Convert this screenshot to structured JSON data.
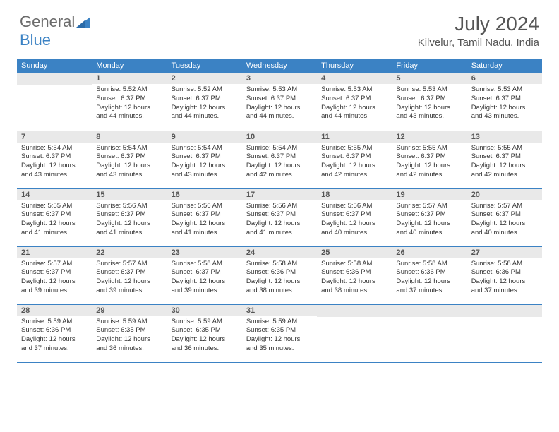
{
  "brand": {
    "part1": "General",
    "part2": "Blue"
  },
  "title": "July 2024",
  "location": "Kilvelur, Tamil Nadu, India",
  "colors": {
    "header_bg": "#3b82c4",
    "header_text": "#ffffff",
    "daynum_bg": "#e9e9e9",
    "text": "#333333",
    "row_border": "#3b82c4"
  },
  "day_headers": [
    "Sunday",
    "Monday",
    "Tuesday",
    "Wednesday",
    "Thursday",
    "Friday",
    "Saturday"
  ],
  "weeks": [
    [
      {
        "n": "",
        "sr": "",
        "ss": "",
        "dl": ""
      },
      {
        "n": "1",
        "sr": "5:52 AM",
        "ss": "6:37 PM",
        "dl": "12 hours and 44 minutes."
      },
      {
        "n": "2",
        "sr": "5:52 AM",
        "ss": "6:37 PM",
        "dl": "12 hours and 44 minutes."
      },
      {
        "n": "3",
        "sr": "5:53 AM",
        "ss": "6:37 PM",
        "dl": "12 hours and 44 minutes."
      },
      {
        "n": "4",
        "sr": "5:53 AM",
        "ss": "6:37 PM",
        "dl": "12 hours and 44 minutes."
      },
      {
        "n": "5",
        "sr": "5:53 AM",
        "ss": "6:37 PM",
        "dl": "12 hours and 43 minutes."
      },
      {
        "n": "6",
        "sr": "5:53 AM",
        "ss": "6:37 PM",
        "dl": "12 hours and 43 minutes."
      }
    ],
    [
      {
        "n": "7",
        "sr": "5:54 AM",
        "ss": "6:37 PM",
        "dl": "12 hours and 43 minutes."
      },
      {
        "n": "8",
        "sr": "5:54 AM",
        "ss": "6:37 PM",
        "dl": "12 hours and 43 minutes."
      },
      {
        "n": "9",
        "sr": "5:54 AM",
        "ss": "6:37 PM",
        "dl": "12 hours and 43 minutes."
      },
      {
        "n": "10",
        "sr": "5:54 AM",
        "ss": "6:37 PM",
        "dl": "12 hours and 42 minutes."
      },
      {
        "n": "11",
        "sr": "5:55 AM",
        "ss": "6:37 PM",
        "dl": "12 hours and 42 minutes."
      },
      {
        "n": "12",
        "sr": "5:55 AM",
        "ss": "6:37 PM",
        "dl": "12 hours and 42 minutes."
      },
      {
        "n": "13",
        "sr": "5:55 AM",
        "ss": "6:37 PM",
        "dl": "12 hours and 42 minutes."
      }
    ],
    [
      {
        "n": "14",
        "sr": "5:55 AM",
        "ss": "6:37 PM",
        "dl": "12 hours and 41 minutes."
      },
      {
        "n": "15",
        "sr": "5:56 AM",
        "ss": "6:37 PM",
        "dl": "12 hours and 41 minutes."
      },
      {
        "n": "16",
        "sr": "5:56 AM",
        "ss": "6:37 PM",
        "dl": "12 hours and 41 minutes."
      },
      {
        "n": "17",
        "sr": "5:56 AM",
        "ss": "6:37 PM",
        "dl": "12 hours and 41 minutes."
      },
      {
        "n": "18",
        "sr": "5:56 AM",
        "ss": "6:37 PM",
        "dl": "12 hours and 40 minutes."
      },
      {
        "n": "19",
        "sr": "5:57 AM",
        "ss": "6:37 PM",
        "dl": "12 hours and 40 minutes."
      },
      {
        "n": "20",
        "sr": "5:57 AM",
        "ss": "6:37 PM",
        "dl": "12 hours and 40 minutes."
      }
    ],
    [
      {
        "n": "21",
        "sr": "5:57 AM",
        "ss": "6:37 PM",
        "dl": "12 hours and 39 minutes."
      },
      {
        "n": "22",
        "sr": "5:57 AM",
        "ss": "6:37 PM",
        "dl": "12 hours and 39 minutes."
      },
      {
        "n": "23",
        "sr": "5:58 AM",
        "ss": "6:37 PM",
        "dl": "12 hours and 39 minutes."
      },
      {
        "n": "24",
        "sr": "5:58 AM",
        "ss": "6:36 PM",
        "dl": "12 hours and 38 minutes."
      },
      {
        "n": "25",
        "sr": "5:58 AM",
        "ss": "6:36 PM",
        "dl": "12 hours and 38 minutes."
      },
      {
        "n": "26",
        "sr": "5:58 AM",
        "ss": "6:36 PM",
        "dl": "12 hours and 37 minutes."
      },
      {
        "n": "27",
        "sr": "5:58 AM",
        "ss": "6:36 PM",
        "dl": "12 hours and 37 minutes."
      }
    ],
    [
      {
        "n": "28",
        "sr": "5:59 AM",
        "ss": "6:36 PM",
        "dl": "12 hours and 37 minutes."
      },
      {
        "n": "29",
        "sr": "5:59 AM",
        "ss": "6:35 PM",
        "dl": "12 hours and 36 minutes."
      },
      {
        "n": "30",
        "sr": "5:59 AM",
        "ss": "6:35 PM",
        "dl": "12 hours and 36 minutes."
      },
      {
        "n": "31",
        "sr": "5:59 AM",
        "ss": "6:35 PM",
        "dl": "12 hours and 35 minutes."
      },
      {
        "n": "",
        "sr": "",
        "ss": "",
        "dl": ""
      },
      {
        "n": "",
        "sr": "",
        "ss": "",
        "dl": ""
      },
      {
        "n": "",
        "sr": "",
        "ss": "",
        "dl": ""
      }
    ]
  ],
  "labels": {
    "sunrise": "Sunrise: ",
    "sunset": "Sunset: ",
    "daylight": "Daylight: "
  }
}
